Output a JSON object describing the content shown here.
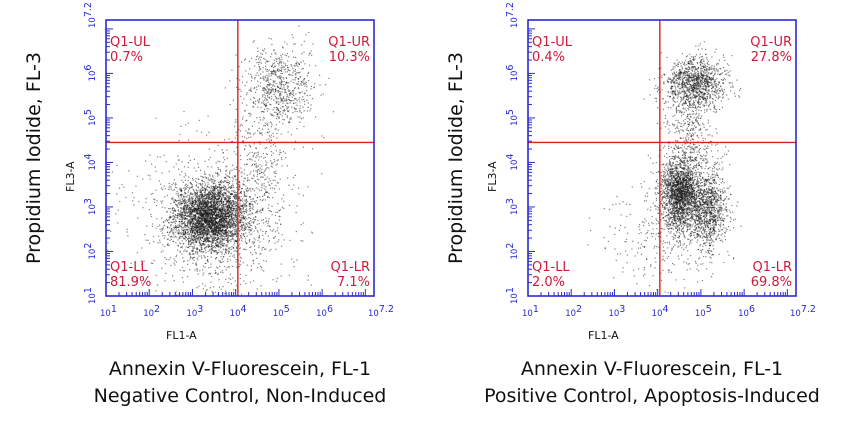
{
  "chart_data": [
    {
      "type": "scatter",
      "title": "",
      "xlabel": "FL1-A",
      "ylabel": "FL3-A",
      "outer_ylabel": "Propidium Iodide, FL-3",
      "caption_lines": [
        "Annexin V-Fluorescein, FL-1",
        "Negative Control, Non-Induced"
      ],
      "x_scale": "log",
      "y_scale": "log",
      "xlim": [
        1,
        7.2
      ],
      "ylim": [
        1,
        7.2
      ],
      "x_ticks": [
        "10^1",
        "10^2",
        "10^3",
        "10^4",
        "10^5",
        "10^6",
        "10^7.2"
      ],
      "y_ticks": [
        "10^1",
        "10^2",
        "10^3",
        "10^4",
        "10^5",
        "10^6",
        "10^7.2"
      ],
      "gate": {
        "x": 4.05,
        "y": 4.45
      },
      "quadrants": [
        {
          "name": "Q1-UL",
          "percent": "0.7%"
        },
        {
          "name": "Q1-UR",
          "percent": "10.3%"
        },
        {
          "name": "Q1-LL",
          "percent": "81.9%"
        },
        {
          "name": "Q1-LR",
          "percent": "7.1%"
        }
      ],
      "populations": [
        {
          "cx": 3.4,
          "cy": 2.8,
          "sx": 0.42,
          "sy": 0.38,
          "n": 3600
        },
        {
          "cx": 3.5,
          "cy": 2.6,
          "sx": 0.9,
          "sy": 0.9,
          "n": 900
        },
        {
          "cx": 5.0,
          "cy": 5.7,
          "sx": 0.42,
          "sy": 0.48,
          "n": 700
        },
        {
          "cx": 4.55,
          "cy": 3.8,
          "sx": 0.35,
          "sy": 0.75,
          "n": 300
        }
      ]
    },
    {
      "type": "scatter",
      "title": "",
      "xlabel": "FL1-A",
      "ylabel": "FL3-A",
      "outer_ylabel": "Propidium Iodide, FL-3",
      "caption_lines": [
        "Annexin V-Fluorescein, FL-1",
        "Positive Control, Apoptosis-Induced"
      ],
      "x_scale": "log",
      "y_scale": "log",
      "xlim": [
        1,
        7.2
      ],
      "ylim": [
        1,
        7.2
      ],
      "x_ticks": [
        "10^1",
        "10^2",
        "10^3",
        "10^4",
        "10^5",
        "10^6",
        "10^7.2"
      ],
      "y_ticks": [
        "10^1",
        "10^2",
        "10^3",
        "10^4",
        "10^5",
        "10^6",
        "10^7.2"
      ],
      "gate": {
        "x": 4.05,
        "y": 4.45
      },
      "quadrants": [
        {
          "name": "Q1-UL",
          "percent": "0.4%"
        },
        {
          "name": "Q1-UR",
          "percent": "27.8%"
        },
        {
          "name": "Q1-LL",
          "percent": "2.0%"
        },
        {
          "name": "Q1-LR",
          "percent": "69.8%"
        }
      ],
      "populations": [
        {
          "cx": 4.5,
          "cy": 3.3,
          "sx": 0.22,
          "sy": 0.4,
          "n": 1900
        },
        {
          "cx": 5.15,
          "cy": 3.0,
          "sx": 0.22,
          "sy": 0.45,
          "n": 1000
        },
        {
          "cx": 4.85,
          "cy": 5.8,
          "sx": 0.35,
          "sy": 0.3,
          "n": 1100
        },
        {
          "cx": 4.7,
          "cy": 4.5,
          "sx": 0.3,
          "sy": 0.75,
          "n": 500
        },
        {
          "cx": 4.2,
          "cy": 2.4,
          "sx": 0.7,
          "sy": 0.6,
          "n": 300
        }
      ]
    }
  ],
  "colors": {
    "axis": "#2a2ad6",
    "gate": "#d92020",
    "label": "#cc1a3a",
    "dot": "#1a1a1a",
    "text": "#111111"
  }
}
